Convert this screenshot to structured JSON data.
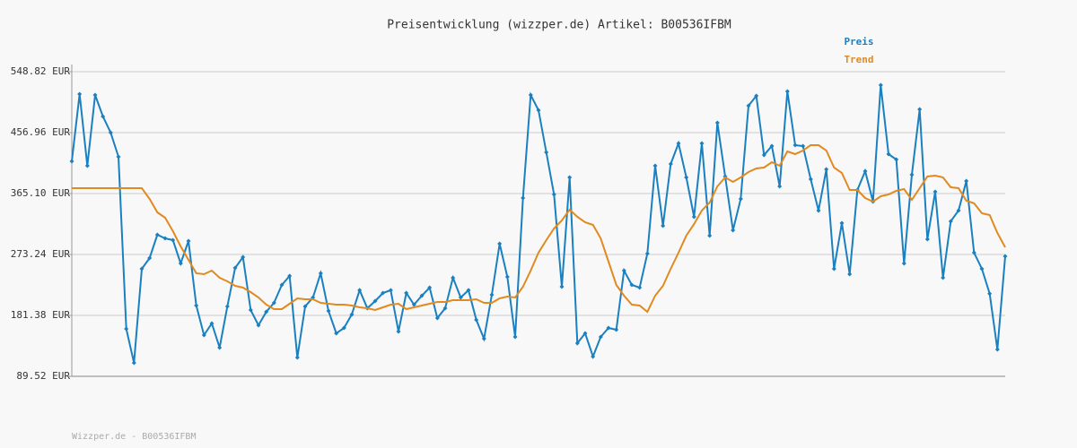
{
  "chart_data": {
    "type": "line",
    "title": "Preisentwicklung (wizzper.de) Artikel: B00536IFBM",
    "footer": "Wizzper.de - B00536IFBM",
    "ylim": [
      89.52,
      548.82
    ],
    "yticks": [
      {
        "value": 89.52,
        "label": "89.52 EUR"
      },
      {
        "value": 181.38,
        "label": "181.38 EUR"
      },
      {
        "value": 273.24,
        "label": "273.24 EUR"
      },
      {
        "value": 365.1,
        "label": "365.10 EUR"
      },
      {
        "value": 456.96,
        "label": "456.96 EUR"
      },
      {
        "value": 548.82,
        "label": "548.82 EUR"
      }
    ],
    "grid": true,
    "legend": "top-right",
    "series": [
      {
        "name": "Preis",
        "color": "#1a80c0",
        "markers": true,
        "values": [
          413.7,
          515.0,
          407.0,
          513.7,
          481.3,
          457.0,
          420.5,
          161.1,
          109.8,
          251.6,
          267.8,
          303.0,
          297.5,
          294.8,
          259.7,
          293.5,
          196.2,
          151.7,
          169.3,
          132.8,
          194.9,
          253.0,
          269.2,
          189.5,
          166.5,
          186.8,
          200.3,
          227.3,
          240.8,
          117.9,
          194.9,
          208.4,
          244.9,
          188.1,
          154.3,
          162.5,
          182.8,
          219.3,
          192.2,
          203.0,
          215.1,
          219.3,
          157.0,
          215.1,
          197.6,
          211.1,
          223.3,
          177.3,
          192.2,
          238.1,
          208.4,
          219.3,
          174.6,
          146.2,
          212.4,
          289.4,
          239.5,
          149.0,
          358.3,
          513.7,
          490.7,
          427.2,
          363.7,
          224.6,
          389.4,
          139.5,
          154.3,
          119.2,
          149.0,
          162.5,
          159.7,
          248.9,
          227.3,
          223.3,
          274.6,
          407.0,
          316.5,
          409.7,
          440.7,
          389.4,
          330.0,
          440.7,
          301.6,
          471.8,
          390.8,
          309.7,
          357.0,
          497.5,
          512.3,
          423.2,
          436.7,
          375.9,
          519.1,
          438.0,
          436.7,
          386.7,
          339.4,
          401.6,
          251.6,
          320.5,
          243.5,
          370.5,
          398.9,
          352.9,
          528.6,
          424.5,
          416.4,
          259.7,
          393.5,
          492.0,
          296.2,
          367.8,
          238.1,
          323.2,
          339.4,
          384.0,
          275.9,
          251.6,
          214.2,
          130.0,
          270.5
        ]
      },
      {
        "name": "Trend",
        "color": "#e08a20",
        "markers": false,
        "values": [
          373.2,
          373.2,
          373.2,
          373.2,
          373.2,
          373.2,
          373.2,
          373.2,
          373.2,
          373.2,
          357.0,
          336.7,
          328.6,
          308.4,
          285.4,
          265.2,
          244.9,
          243.5,
          248.9,
          238.1,
          232.7,
          226.0,
          223.3,
          216.5,
          208.4,
          197.6,
          190.8,
          190.8,
          198.9,
          207.0,
          205.7,
          205.7,
          200.3,
          198.9,
          197.6,
          197.6,
          196.2,
          193.5,
          192.2,
          189.5,
          193.5,
          197.6,
          198.9,
          190.8,
          193.5,
          196.2,
          198.9,
          201.6,
          201.6,
          204.3,
          204.3,
          204.3,
          205.7,
          200.3,
          200.3,
          207.0,
          209.7,
          208.4,
          224.6,
          248.9,
          275.9,
          294.8,
          312.4,
          324.6,
          340.8,
          330.0,
          321.8,
          317.8,
          297.5,
          262.4,
          227.3,
          211.1,
          197.6,
          196.2,
          186.8,
          211.1,
          226.0,
          251.6,
          275.9,
          301.6,
          319.1,
          339.4,
          351.6,
          375.9,
          389.4,
          382.6,
          389.4,
          397.5,
          402.9,
          404.3,
          412.4,
          407.0,
          428.6,
          424.5,
          429.9,
          438.0,
          438.0,
          429.9,
          404.3,
          396.2,
          370.5,
          370.5,
          358.3,
          352.9,
          361.0,
          363.7,
          369.1,
          371.8,
          355.6,
          373.2,
          390.8,
          392.1,
          389.4,
          374.6,
          373.2,
          354.3,
          350.4,
          335.4,
          332.7,
          305.6,
          284.0
        ]
      }
    ]
  }
}
